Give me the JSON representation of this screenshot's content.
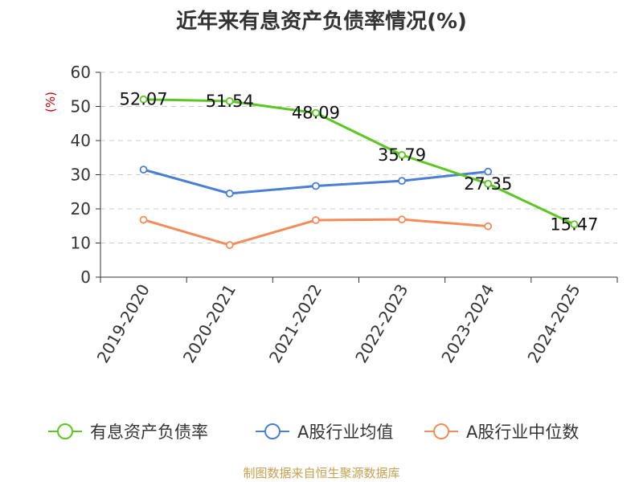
{
  "chart_data": {
    "type": "line",
    "title": "近年来有息资产负债率情况(%)",
    "ylabel": "(%)",
    "xlabel": "",
    "categories": [
      "2019-2020",
      "2020-2021",
      "2021-2022",
      "2022-2023",
      "2023-2024",
      "2024-2025"
    ],
    "ylim": [
      0,
      60
    ],
    "yticks": [
      0,
      10,
      20,
      30,
      40,
      50,
      60
    ],
    "grid": true,
    "legend_position": "bottom",
    "series": [
      {
        "name": "有息资产负债率",
        "color": "#5cc623",
        "values": [
          52.07,
          51.54,
          48.09,
          35.79,
          27.35,
          15.47
        ],
        "labels": [
          "52.07",
          "51.54",
          "48.09",
          "35.79",
          "27.35",
          "15.47"
        ]
      },
      {
        "name": "A股行业均值",
        "color": "#4a7fd6",
        "values": [
          31.5,
          24.5,
          26.7,
          28.2,
          30.9,
          null
        ]
      },
      {
        "name": "A股行业中位数",
        "color": "#f48c5a",
        "values": [
          16.8,
          9.4,
          16.7,
          16.9,
          14.9,
          null
        ]
      }
    ]
  },
  "colors": {
    "ylabel": "#cc0000",
    "source": "#c8a050",
    "axis": "#333333",
    "grid": "#cccccc"
  },
  "source_text": "制图数据来自恒生聚源数据库"
}
